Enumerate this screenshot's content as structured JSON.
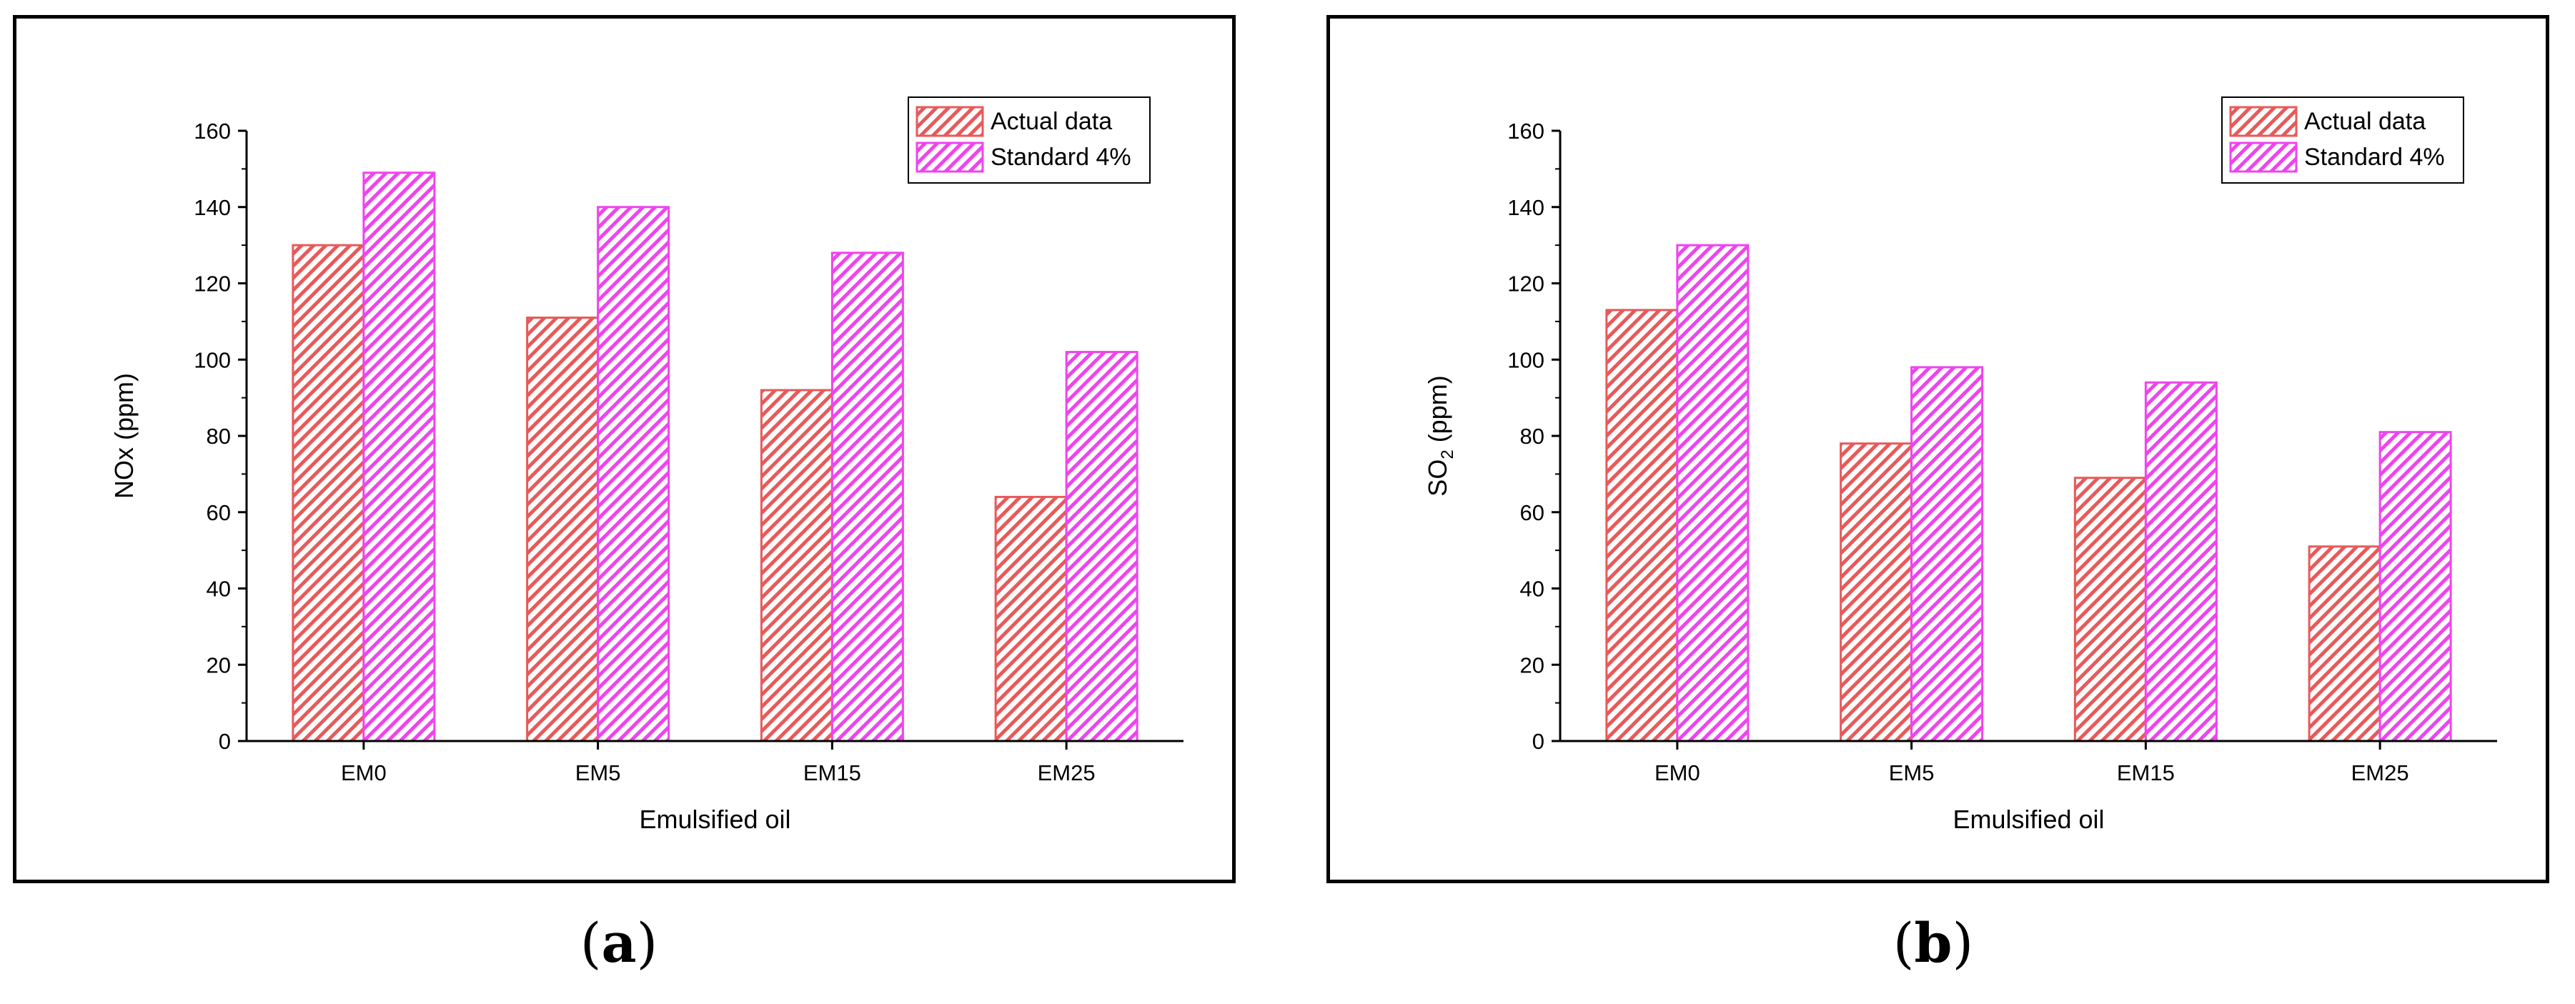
{
  "chart_data": [
    {
      "type": "bar",
      "panel": "a",
      "categories": [
        "EM0",
        "EM5",
        "EM15",
        "EM25"
      ],
      "series": [
        {
          "name": "Actual data",
          "values": [
            130,
            111,
            92,
            64
          ],
          "color": "#e8595a",
          "pattern": "hatch-diagonal"
        },
        {
          "name": "Standard 4%",
          "values": [
            149,
            140,
            128,
            102
          ],
          "color": "#ee44ee",
          "pattern": "hatch-diagonal"
        }
      ],
      "yticks": [
        "0",
        "20",
        "40",
        "60",
        "80",
        "100",
        "120",
        "140",
        "160"
      ],
      "title": "",
      "xlabel": "Emulsified oil",
      "ylabel": "NOx  (ppm)",
      "ylim": [
        0,
        160
      ],
      "grid": false,
      "legend": "top-right"
    },
    {
      "type": "bar",
      "panel": "b",
      "categories": [
        "EM0",
        "EM5",
        "EM15",
        "EM25"
      ],
      "series": [
        {
          "name": "Actual data",
          "values": [
            113,
            78,
            69,
            51
          ],
          "color": "#e8595a",
          "pattern": "hatch-diagonal"
        },
        {
          "name": "Standard 4%",
          "values": [
            130,
            98,
            94,
            81
          ],
          "color": "#ee44ee",
          "pattern": "hatch-diagonal"
        }
      ],
      "yticks": [
        "0",
        "20",
        "40",
        "60",
        "80",
        "100",
        "120",
        "140",
        "160"
      ],
      "title": "",
      "xlabel": "Emulsified oil",
      "ylabel": "SO",
      "ylabel_subscript": "2",
      "ylabel_suffix": " (ppm)",
      "ylim": [
        0,
        160
      ],
      "grid": false,
      "legend": "top-right"
    }
  ],
  "captions": {
    "a": {
      "open": "(",
      "letter": "a",
      "close": ")"
    },
    "b": {
      "open": "(",
      "letter": "b",
      "close": ")"
    }
  }
}
